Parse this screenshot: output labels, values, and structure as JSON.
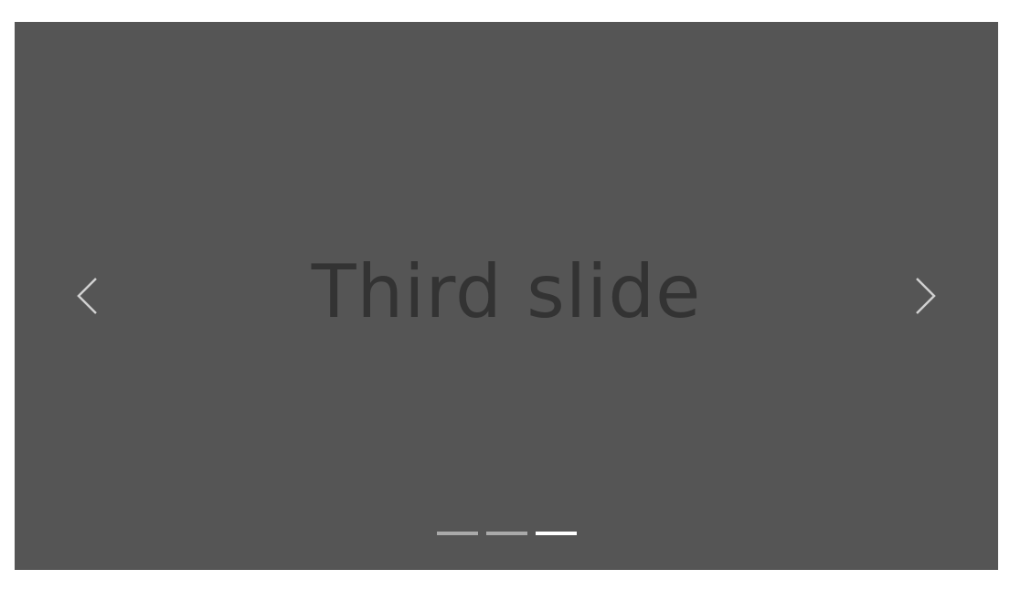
{
  "carousel": {
    "slide_label": "Third slide",
    "background_color": "#555555",
    "label_color": "#333333",
    "active_index": 3,
    "slide_count": 3,
    "prev_icon": "chevron-left-icon",
    "next_icon": "chevron-right-icon",
    "indicators": [
      {
        "slide": 1,
        "active": false
      },
      {
        "slide": 2,
        "active": false
      },
      {
        "slide": 3,
        "active": true
      }
    ]
  }
}
